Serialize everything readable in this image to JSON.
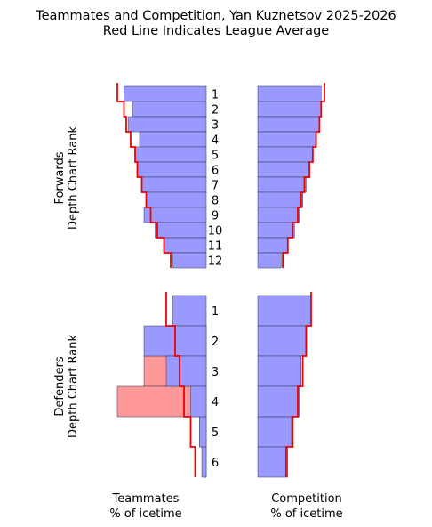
{
  "title": [
    "Teammates and Competition, Yan Kuznetsov 2025-2026",
    "Red Line Indicates League Average"
  ],
  "colors": {
    "player_bar": "#9999ff",
    "defender_teammate_bar": "#ff9999",
    "league_avg_line": "#ee0000",
    "bar_edge": "#333355"
  },
  "chart_data": {
    "type": "bar",
    "orientation": "horizontal",
    "note_units": "percent of player icetime",
    "forwards": {
      "ylabel": [
        "Forwards",
        "Depth Chart Rank"
      ],
      "ranks": [
        "1",
        "2",
        "3",
        "4",
        "5",
        "6",
        "7",
        "8",
        "9",
        "10",
        "11",
        "12"
      ],
      "teammates": [
        37,
        33,
        35,
        30,
        32,
        31,
        29,
        27,
        28,
        23,
        19,
        15
      ],
      "teammates_league_avg": [
        40,
        37,
        36,
        34,
        32,
        31,
        29,
        27,
        25,
        22,
        19,
        16
      ],
      "competition": [
        38,
        38,
        37,
        35,
        33,
        31,
        29,
        27,
        25,
        22,
        18,
        14
      ],
      "competition_league_avg": [
        40,
        38,
        37,
        35,
        33,
        31,
        28,
        26,
        24,
        21,
        18,
        15
      ]
    },
    "defenders": {
      "ylabel": [
        "Defenders",
        "Depth Chart Rank"
      ],
      "ranks": [
        "1",
        "2",
        "3",
        "4",
        "5",
        "6"
      ],
      "teammates": [
        15,
        28,
        18,
        7,
        3,
        2
      ],
      "teammates_defender": [
        0,
        4,
        28,
        40,
        3,
        1
      ],
      "teammates_league_avg": [
        18,
        14,
        12,
        10,
        7,
        5
      ],
      "competition": [
        32,
        29,
        26,
        25,
        20,
        18
      ],
      "competition_league_avg": [
        32,
        29,
        27,
        24,
        21,
        17
      ]
    },
    "xlabel_left": [
      "Teammates",
      "% of icetime"
    ],
    "xlabel_right": [
      "Competition",
      "% of icetime"
    ]
  }
}
